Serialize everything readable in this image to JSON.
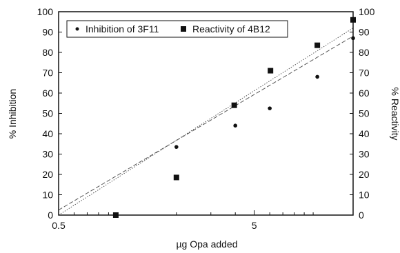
{
  "chart_data": {
    "type": "scatter",
    "xlabel": "µg Opa added",
    "ylabel": "% Inhibition",
    "y2label": "% Reactivity",
    "xscale": "log",
    "xlim": [
      0.5,
      16
    ],
    "ylim": [
      0,
      100
    ],
    "y2lim": [
      0,
      100
    ],
    "x_ticks": [
      {
        "value": 0.5,
        "label": "0.5"
      },
      {
        "value": 5,
        "label": "5"
      }
    ],
    "y_ticks": [
      0,
      10,
      20,
      30,
      40,
      50,
      60,
      70,
      80,
      90,
      100
    ],
    "y2_ticks": [
      0,
      10,
      20,
      30,
      40,
      50,
      60,
      70,
      80,
      90,
      100
    ],
    "grid": false,
    "legend": "top-left",
    "series": [
      {
        "name": "Inhibition of 3F11",
        "marker": "dot",
        "fit": "dashed",
        "points": [
          {
            "x": 2.0,
            "y": 33.5
          },
          {
            "x": 4.0,
            "y": 44
          },
          {
            "x": 6.0,
            "y": 52.5
          },
          {
            "x": 10.5,
            "y": 68
          },
          {
            "x": 16.0,
            "y": 87
          }
        ],
        "fitline": {
          "x0": 0.5,
          "y0": 2.5,
          "x1": 16,
          "y1": 88
        }
      },
      {
        "name": "Reactivity of 4B12",
        "marker": "square",
        "fit": "dotted",
        "points": [
          {
            "x": 0.98,
            "y": 0
          },
          {
            "x": 2.0,
            "y": 18.5
          },
          {
            "x": 3.95,
            "y": 54
          },
          {
            "x": 6.05,
            "y": 71
          },
          {
            "x": 10.5,
            "y": 83.5
          },
          {
            "x": 16.0,
            "y": 96
          }
        ],
        "fitline": {
          "x0": 0.5,
          "y0": 0,
          "x1": 16,
          "y1": 92
        }
      }
    ],
    "colors": {
      "ink": "#111111",
      "background": "#ffffff",
      "fit": "#555555"
    }
  }
}
